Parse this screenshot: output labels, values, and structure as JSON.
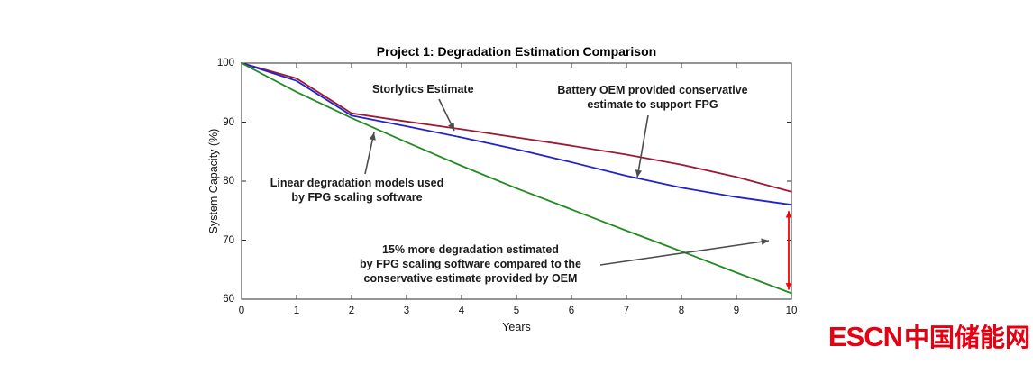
{
  "chart_data": {
    "type": "line",
    "title": "Project 1: Degradation Estimation Comparison",
    "xlabel": "Years",
    "ylabel": "System Capacity (%)",
    "xlim": [
      0,
      10
    ],
    "ylim": [
      60,
      100
    ],
    "xticks": [
      0,
      1,
      2,
      3,
      4,
      5,
      6,
      7,
      8,
      9,
      10
    ],
    "yticks": [
      60,
      70,
      80,
      90,
      100
    ],
    "grid": false,
    "legend": "none (labels via annotation arrows)",
    "x": [
      0,
      1,
      2,
      3,
      4,
      5,
      6,
      7,
      8,
      9,
      10
    ],
    "series": [
      {
        "name": "Storlytics Estimate",
        "color": "#9a1b33",
        "values": [
          100,
          97.4,
          91.5,
          90.1,
          88.8,
          87.4,
          86.0,
          84.5,
          82.8,
          80.7,
          78.2
        ]
      },
      {
        "name": "Battery OEM provided conservative estimate to support FPG",
        "color": "#2222cc",
        "values": [
          100,
          97.0,
          91.1,
          89.3,
          87.4,
          85.4,
          83.2,
          80.9,
          78.9,
          77.3,
          76.0
        ]
      },
      {
        "name": "Linear degradation models used by FPG scaling software",
        "color": "#228b22",
        "values": [
          100,
          95.1,
          90.7,
          86.6,
          82.6,
          78.8,
          75.2,
          71.6,
          68.1,
          64.5,
          61.0
        ]
      }
    ],
    "annotations": [
      {
        "text": "Storlytics Estimate"
      },
      {
        "text": "Battery OEM provided conservative\nestimate to support FPG"
      },
      {
        "text": "Linear degradation models used\nby FPG scaling software"
      },
      {
        "text": "15% more degradation estimated\nby FPG scaling software compared to the\nconservative estimate provided by OEM"
      }
    ],
    "annotation_arrow_color": "#4d4d4d",
    "delta_arrow": {
      "x": 10,
      "from": 76.0,
      "to": 61.0,
      "color": "#ff0000",
      "meaning": "15% capacity difference at year 10 between OEM estimate and FPG linear model"
    }
  },
  "logo": {
    "latin": "ESCN",
    "cn": "中国储能网",
    "color": "#e60012"
  }
}
